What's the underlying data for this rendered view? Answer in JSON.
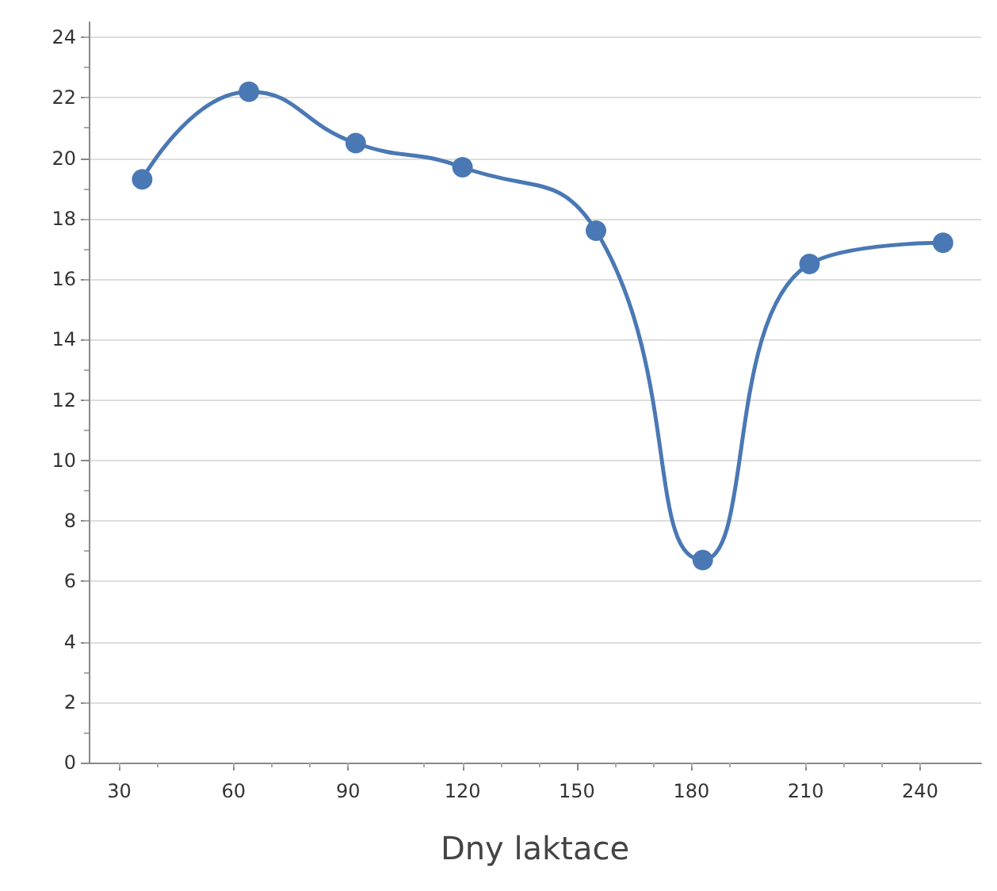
{
  "chart_data": {
    "type": "line",
    "xlabel": "Dny laktace",
    "x": [
      36,
      64,
      92,
      120,
      155,
      183,
      211,
      246
    ],
    "series": [
      {
        "color": "#4a78b4",
        "values": [
          19.3,
          22.2,
          20.5,
          19.7,
          17.6,
          6.7,
          16.5,
          17.2
        ]
      }
    ],
    "xlim": [
      22,
      256
    ],
    "xticks": [
      30,
      60,
      90,
      120,
      150,
      180,
      210,
      240
    ],
    "ylim": [
      0,
      24.5
    ],
    "yticks": [
      0,
      2,
      4,
      6,
      8,
      10,
      12,
      14,
      16,
      18,
      20,
      22,
      24
    ],
    "grid": "y",
    "marker": "circle",
    "line_style": "solid"
  }
}
